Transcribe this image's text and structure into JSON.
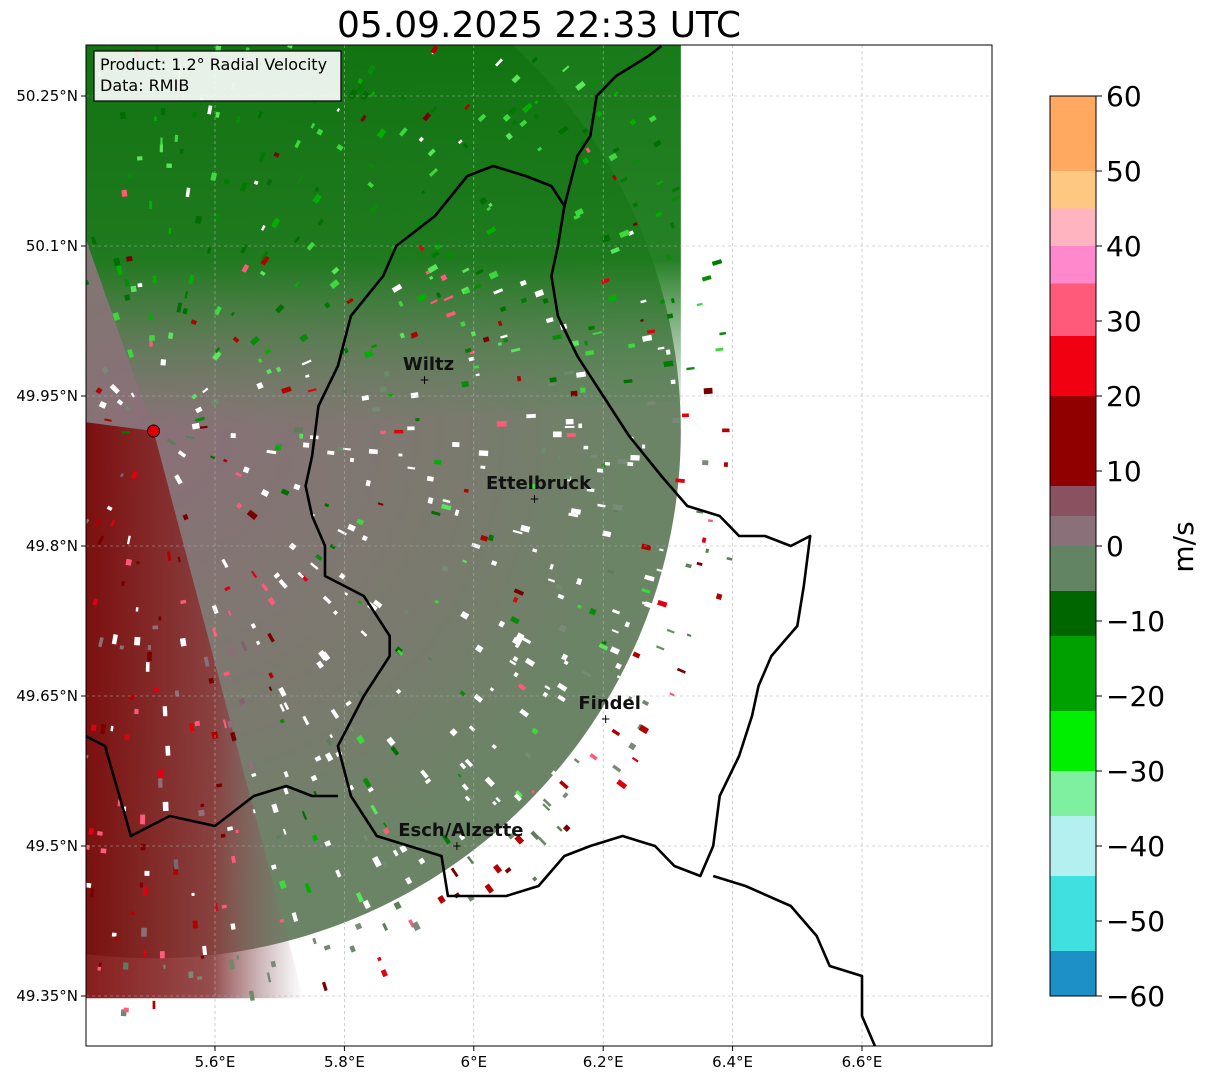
{
  "title": "05.09.2025 22:33 UTC",
  "info_box": {
    "product": "Product: 1.2° Radial Velocity",
    "data_source": "Data: RMIB"
  },
  "map": {
    "lon_range": [
      5.4,
      6.8
    ],
    "lat_range": [
      49.3,
      50.3
    ],
    "lon_ticks": [
      {
        "value": 5.6,
        "label": "5.6°E"
      },
      {
        "value": 5.8,
        "label": "5.8°E"
      },
      {
        "value": 6.0,
        "label": "6°E"
      },
      {
        "value": 6.2,
        "label": "6.2°E"
      },
      {
        "value": 6.4,
        "label": "6.4°E"
      },
      {
        "value": 6.6,
        "label": "6.6°E"
      }
    ],
    "lat_ticks": [
      {
        "value": 50.25,
        "label": "50.25°N"
      },
      {
        "value": 50.1,
        "label": "50.1°N"
      },
      {
        "value": 49.95,
        "label": "49.95°N"
      },
      {
        "value": 49.8,
        "label": "49.8°N"
      },
      {
        "value": 49.65,
        "label": "49.65°N"
      },
      {
        "value": 49.5,
        "label": "49.5°N"
      },
      {
        "value": 49.35,
        "label": "49.35°N"
      }
    ],
    "grid": true,
    "radar_site": {
      "lon": 5.505,
      "lat": 49.915
    },
    "cities": [
      {
        "name": "Wiltz",
        "lon": 5.93,
        "lat": 49.966
      },
      {
        "name": "Ettelbruck",
        "lon": 6.1,
        "lat": 49.847
      },
      {
        "name": "Findel",
        "lon": 6.21,
        "lat": 49.627
      },
      {
        "name": "Esch/Alzette",
        "lon": 5.98,
        "lat": 49.5
      }
    ],
    "border": [
      [
        5.99,
        50.17
      ],
      [
        6.03,
        50.18
      ],
      [
        6.08,
        50.17
      ],
      [
        6.12,
        50.16
      ],
      [
        6.14,
        50.14
      ],
      [
        6.13,
        50.1
      ],
      [
        6.12,
        50.07
      ],
      [
        6.13,
        50.03
      ],
      [
        6.16,
        49.99
      ],
      [
        6.2,
        49.95
      ],
      [
        6.24,
        49.91
      ],
      [
        6.29,
        49.87
      ],
      [
        6.33,
        49.84
      ],
      [
        6.38,
        49.83
      ],
      [
        6.41,
        49.81
      ],
      [
        6.45,
        49.81
      ],
      [
        6.49,
        49.8
      ],
      [
        6.52,
        49.81
      ],
      [
        6.51,
        49.76
      ],
      [
        6.5,
        49.72
      ],
      [
        6.46,
        49.69
      ],
      [
        6.44,
        49.66
      ],
      [
        6.43,
        49.63
      ],
      [
        6.41,
        49.59
      ],
      [
        6.38,
        49.55
      ],
      [
        6.37,
        49.5
      ],
      [
        6.35,
        49.47
      ],
      [
        6.31,
        49.48
      ],
      [
        6.28,
        49.5
      ],
      [
        6.23,
        49.51
      ],
      [
        6.18,
        49.5
      ],
      [
        6.14,
        49.49
      ],
      [
        6.1,
        49.46
      ],
      [
        6.05,
        49.45
      ],
      [
        6.0,
        49.45
      ],
      [
        5.96,
        49.45
      ],
      [
        5.95,
        49.49
      ],
      [
        5.9,
        49.5
      ],
      [
        5.85,
        49.51
      ],
      [
        5.81,
        49.55
      ],
      [
        5.79,
        49.6
      ],
      [
        5.83,
        49.65
      ],
      [
        5.87,
        49.69
      ],
      [
        5.87,
        49.71
      ],
      [
        5.83,
        49.75
      ],
      [
        5.77,
        49.77
      ],
      [
        5.77,
        49.8
      ],
      [
        5.75,
        49.83
      ],
      [
        5.74,
        49.86
      ],
      [
        5.75,
        49.89
      ],
      [
        5.76,
        49.94
      ],
      [
        5.79,
        49.98
      ],
      [
        5.81,
        50.03
      ],
      [
        5.86,
        50.07
      ],
      [
        5.88,
        50.1
      ],
      [
        5.94,
        50.13
      ],
      [
        5.99,
        50.17
      ]
    ],
    "border_west_fr_be": [
      [
        5.4,
        49.61
      ],
      [
        5.43,
        49.6
      ],
      [
        5.47,
        49.51
      ],
      [
        5.5,
        49.52
      ],
      [
        5.53,
        49.53
      ],
      [
        5.6,
        49.52
      ],
      [
        5.66,
        49.55
      ],
      [
        5.71,
        49.56
      ],
      [
        5.75,
        49.55
      ],
      [
        5.79,
        49.55
      ]
    ],
    "border_de": [
      [
        6.14,
        50.14
      ],
      [
        6.16,
        50.19
      ],
      [
        6.18,
        50.21
      ],
      [
        6.19,
        50.25
      ],
      [
        6.22,
        50.27
      ],
      [
        6.27,
        50.29
      ],
      [
        6.29,
        50.3
      ]
    ],
    "border_fr_de": [
      [
        6.37,
        49.47
      ],
      [
        6.42,
        49.46
      ],
      [
        6.49,
        49.44
      ],
      [
        6.53,
        49.41
      ],
      [
        6.55,
        49.38
      ],
      [
        6.6,
        49.37
      ],
      [
        6.6,
        49.33
      ],
      [
        6.62,
        49.3
      ]
    ],
    "radar_coverage_east_lon": 6.32
  },
  "colorbar": {
    "label": "m/s",
    "range": [
      -60,
      60
    ],
    "ticks": [
      {
        "value": 60,
        "label": "60"
      },
      {
        "value": 50,
        "label": "50"
      },
      {
        "value": 40,
        "label": "40"
      },
      {
        "value": 30,
        "label": "30"
      },
      {
        "value": 20,
        "label": "20"
      },
      {
        "value": 10,
        "label": "10"
      },
      {
        "value": 0,
        "label": "0"
      },
      {
        "value": -10,
        "label": "−10"
      },
      {
        "value": -20,
        "label": "−20"
      },
      {
        "value": -30,
        "label": "−30"
      },
      {
        "value": -40,
        "label": "−40"
      },
      {
        "value": -50,
        "label": "−50"
      },
      {
        "value": -60,
        "label": "−60"
      }
    ],
    "stops": [
      {
        "from": 50,
        "to": 60,
        "color": "#ffa860"
      },
      {
        "from": 45,
        "to": 50,
        "color": "#ffc882"
      },
      {
        "from": 40,
        "to": 45,
        "color": "#ffb4c0"
      },
      {
        "from": 35,
        "to": 40,
        "color": "#ff88cc"
      },
      {
        "from": 28,
        "to": 35,
        "color": "#ff5a7a"
      },
      {
        "from": 20,
        "to": 28,
        "color": "#f00010"
      },
      {
        "from": 8,
        "to": 20,
        "color": "#900000"
      },
      {
        "from": 4,
        "to": 8,
        "color": "#8a5260"
      },
      {
        "from": 0,
        "to": 4,
        "color": "#8a7078"
      },
      {
        "from": -6,
        "to": 0,
        "color": "#628462"
      },
      {
        "from": -12,
        "to": -6,
        "color": "#006600"
      },
      {
        "from": -22,
        "to": -12,
        "color": "#00a000"
      },
      {
        "from": -30,
        "to": -22,
        "color": "#00ee00"
      },
      {
        "from": -36,
        "to": -30,
        "color": "#7ff0a0"
      },
      {
        "from": -44,
        "to": -36,
        "color": "#b4f0f0"
      },
      {
        "from": -54,
        "to": -44,
        "color": "#40e0e0"
      },
      {
        "from": -60,
        "to": -54,
        "color": "#1e90c8"
      }
    ]
  },
  "colors": {
    "grid": "#b0b0b0",
    "border": "#000000",
    "radar_site": "#e00000",
    "green_dark": "#006e00",
    "green_mid": "#4d8c4d",
    "grey_green": "#6d8a6a",
    "mauve": "#8a6e78",
    "dark_red": "#7a0000"
  }
}
